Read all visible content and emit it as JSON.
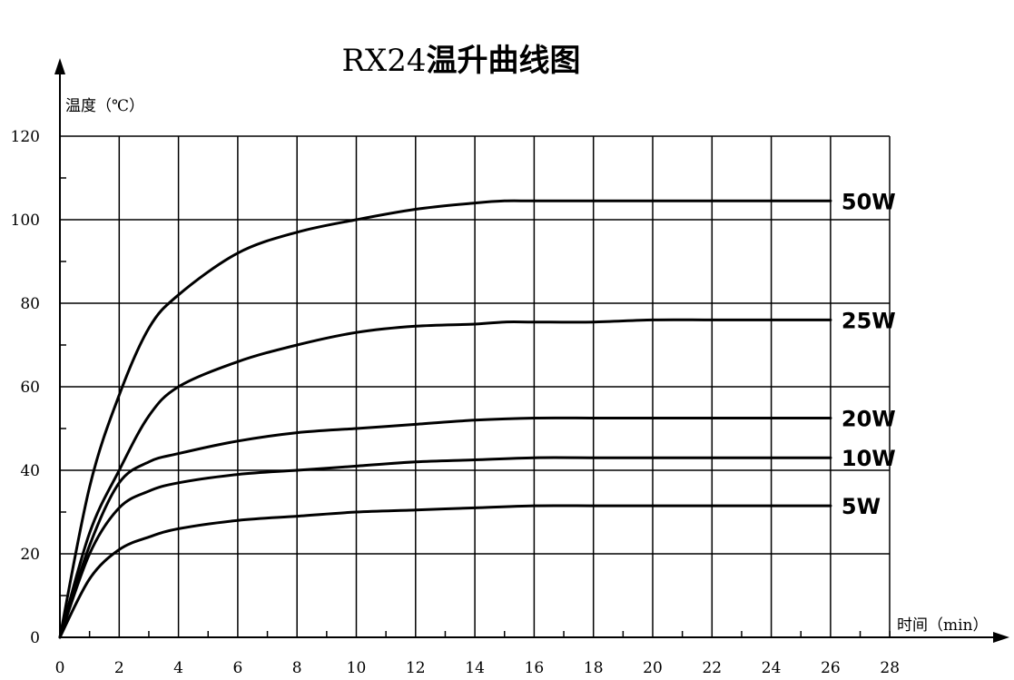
{
  "chart_data": {
    "type": "line",
    "title_latin": "RX24",
    "title_cjk": "温升曲线图",
    "ylabel": "温度（℃）",
    "xlabel": "时间（min）",
    "xlim": [
      0,
      28
    ],
    "ylim": [
      0,
      120
    ],
    "x_ticks": [
      0,
      2,
      4,
      6,
      8,
      10,
      12,
      14,
      16,
      18,
      20,
      22,
      24,
      26,
      28
    ],
    "y_ticks": [
      0,
      20,
      40,
      60,
      80,
      100,
      120
    ],
    "grid": true,
    "series": [
      {
        "name": "50W",
        "x": [
          0,
          1,
          2,
          3,
          4,
          6,
          8,
          10,
          12,
          14,
          15,
          16,
          18,
          20,
          22,
          24,
          26
        ],
        "y": [
          0,
          36,
          58,
          74,
          82,
          92,
          97,
          100,
          102.5,
          104,
          104.5,
          104.5,
          104.5,
          104.5,
          104.5,
          104.5,
          104.5
        ]
      },
      {
        "name": "25W",
        "x": [
          0,
          1,
          2,
          3,
          4,
          6,
          8,
          10,
          12,
          14,
          15,
          16,
          18,
          20,
          22,
          24,
          26
        ],
        "y": [
          0,
          25,
          40,
          53,
          60,
          66,
          70,
          73,
          74.5,
          75,
          75.5,
          75.5,
          75.5,
          76,
          76,
          76,
          76
        ]
      },
      {
        "name": "20W",
        "x": [
          0,
          1,
          2,
          3,
          4,
          6,
          8,
          10,
          12,
          14,
          16,
          18,
          20,
          22,
          24,
          26
        ],
        "y": [
          0,
          22,
          37,
          42,
          44,
          47,
          49,
          50,
          51,
          52,
          52.5,
          52.5,
          52.5,
          52.5,
          52.5,
          52.5
        ]
      },
      {
        "name": "10W",
        "x": [
          0,
          1,
          2,
          3,
          4,
          6,
          8,
          10,
          12,
          14,
          16,
          18,
          20,
          22,
          24,
          26
        ],
        "y": [
          0,
          20,
          31,
          35,
          37,
          39,
          40,
          41,
          42,
          42.5,
          43,
          43,
          43,
          43,
          43,
          43
        ]
      },
      {
        "name": "5W",
        "x": [
          0,
          1,
          2,
          3,
          4,
          6,
          8,
          10,
          12,
          14,
          16,
          18,
          20,
          22,
          24,
          26
        ],
        "y": [
          0,
          14,
          21,
          24,
          26,
          28,
          29,
          30,
          30.5,
          31,
          31.5,
          31.5,
          31.5,
          31.5,
          31.5,
          31.5
        ]
      }
    ]
  }
}
